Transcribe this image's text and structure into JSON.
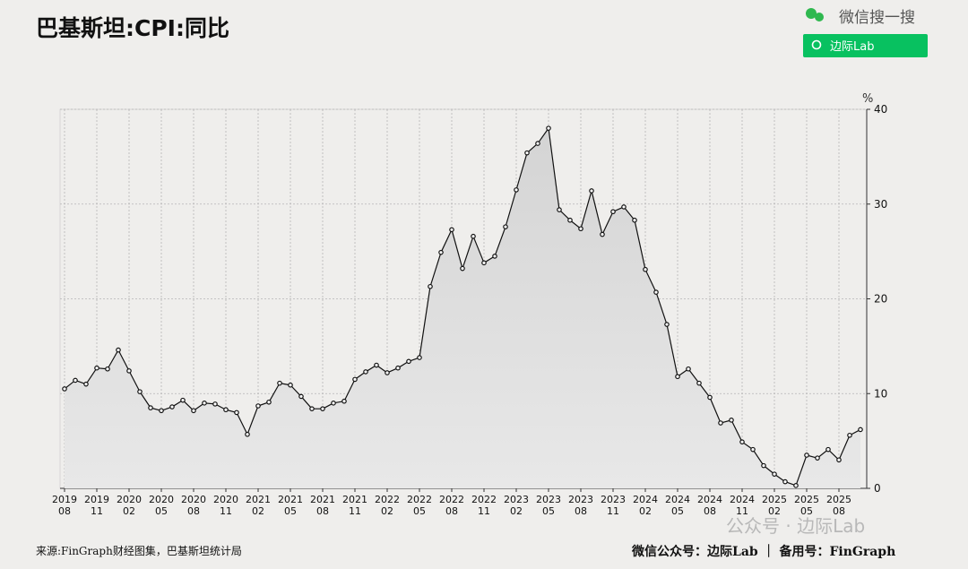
{
  "chart_data": {
    "type": "line",
    "title": "巴基斯坦:CPI:同比",
    "unit": "%",
    "source": "来源:FinGraph财经图集，巴基斯坦统计局",
    "footer": "微信公众号：边际Lab ｜ 备用号：FinGraph",
    "search_label": "微信搜一搜",
    "search_button": "边际Lab",
    "watermark": "公众号 · 边际Lab",
    "categories": [
      "2019-08",
      "2019-09",
      "2019-10",
      "2019-11",
      "2019-12",
      "2020-01",
      "2020-02",
      "2020-03",
      "2020-04",
      "2020-05",
      "2020-06",
      "2020-07",
      "2020-08",
      "2020-09",
      "2020-10",
      "2020-11",
      "2020-12",
      "2021-01",
      "2021-02",
      "2021-03",
      "2021-04",
      "2021-05",
      "2021-06",
      "2021-07",
      "2021-08",
      "2021-09",
      "2021-10",
      "2021-11",
      "2021-12",
      "2022-01",
      "2022-02",
      "2022-03",
      "2022-04",
      "2022-05",
      "2022-06",
      "2022-07",
      "2022-08",
      "2022-09",
      "2022-10",
      "2022-11",
      "2022-12",
      "2023-01",
      "2023-02",
      "2023-03",
      "2023-04",
      "2023-05",
      "2023-06",
      "2023-07",
      "2023-08",
      "2023-09",
      "2023-10",
      "2023-11",
      "2023-12",
      "2024-01",
      "2024-02",
      "2024-03",
      "2024-04",
      "2024-05",
      "2024-06",
      "2024-07",
      "2024-08",
      "2024-09",
      "2024-10",
      "2024-11",
      "2024-12",
      "2025-01",
      "2025-02",
      "2025-03",
      "2025-04",
      "2025-05",
      "2025-06",
      "2025-07",
      "2025-08",
      "2025-09",
      "2025-10"
    ],
    "series": [
      {
        "name": "CPI:同比",
        "color": "#111111",
        "values": [
          10.5,
          11.4,
          11.0,
          12.7,
          12.6,
          14.6,
          12.4,
          10.2,
          8.5,
          8.2,
          8.6,
          9.3,
          8.2,
          9.0,
          8.9,
          8.3,
          8.0,
          5.7,
          8.7,
          9.1,
          11.1,
          10.9,
          9.7,
          8.4,
          8.4,
          9.0,
          9.2,
          11.5,
          12.3,
          13.0,
          12.2,
          12.7,
          13.4,
          13.8,
          21.3,
          24.9,
          27.3,
          23.2,
          26.6,
          23.8,
          24.5,
          27.6,
          31.5,
          35.4,
          36.4,
          38.0,
          29.4,
          28.3,
          27.4,
          31.4,
          26.8,
          29.2,
          29.7,
          28.3,
          23.1,
          20.7,
          17.3,
          11.8,
          12.6,
          11.1,
          9.6,
          6.9,
          7.2,
          4.9,
          4.1,
          2.4,
          1.5,
          0.7,
          0.3,
          3.5,
          3.2,
          4.1,
          3.0,
          5.6,
          6.2
        ]
      }
    ],
    "xticks": [
      {
        "value": "2019-08",
        "label": [
          "2019",
          "08"
        ]
      },
      {
        "value": "2019-11",
        "label": [
          "2019",
          "11"
        ]
      },
      {
        "value": "2020-02",
        "label": [
          "2020",
          "02"
        ]
      },
      {
        "value": "2020-05",
        "label": [
          "2020",
          "05"
        ]
      },
      {
        "value": "2020-08",
        "label": [
          "2020",
          "08"
        ]
      },
      {
        "value": "2020-11",
        "label": [
          "2020",
          "11"
        ]
      },
      {
        "value": "2021-02",
        "label": [
          "2021",
          "02"
        ]
      },
      {
        "value": "2021-05",
        "label": [
          "2021",
          "05"
        ]
      },
      {
        "value": "2021-08",
        "label": [
          "2021",
          "08"
        ]
      },
      {
        "value": "2021-11",
        "label": [
          "2021",
          "11"
        ]
      },
      {
        "value": "2022-02",
        "label": [
          "2022",
          "02"
        ]
      },
      {
        "value": "2022-05",
        "label": [
          "2022",
          "05"
        ]
      },
      {
        "value": "2022-08",
        "label": [
          "2022",
          "08"
        ]
      },
      {
        "value": "2022-11",
        "label": [
          "2022",
          "11"
        ]
      },
      {
        "value": "2023-02",
        "label": [
          "2023",
          "02"
        ]
      },
      {
        "value": "2023-05",
        "label": [
          "2023",
          "05"
        ]
      },
      {
        "value": "2023-08",
        "label": [
          "2023",
          "08"
        ]
      },
      {
        "value": "2023-11",
        "label": [
          "2023",
          "11"
        ]
      },
      {
        "value": "2024-02",
        "label": [
          "2024",
          "02"
        ]
      },
      {
        "value": "2024-05",
        "label": [
          "2024",
          "05"
        ]
      },
      {
        "value": "2024-08",
        "label": [
          "2024",
          "08"
        ]
      },
      {
        "value": "2024-11",
        "label": [
          "2024",
          "11"
        ]
      },
      {
        "value": "2025-02",
        "label": [
          "2025",
          "02"
        ]
      },
      {
        "value": "2025-05",
        "label": [
          "2025",
          "05"
        ]
      },
      {
        "value": "2025-08",
        "label": [
          "2025",
          "08"
        ]
      }
    ],
    "ylim": [
      0,
      40
    ],
    "yticks": [
      0,
      10,
      20,
      30,
      40
    ],
    "grid": true
  }
}
